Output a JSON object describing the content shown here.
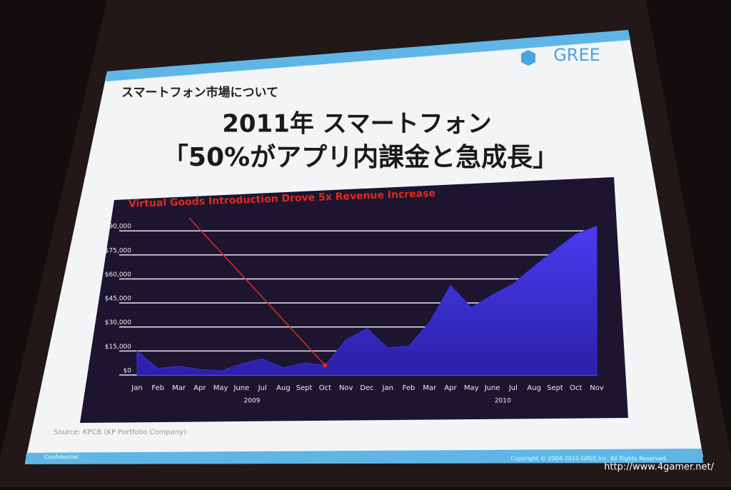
{
  "header": {
    "section": "スマートフォン市場について",
    "logo": "GREE"
  },
  "title": {
    "lines": [
      "2011年 スマートフォン",
      "「50%がアプリ内課金と急成長」"
    ]
  },
  "chart_data": {
    "type": "area",
    "annotation": "Virtual Goods Introduction Drove 5x Revenue Increase",
    "categories": [
      "Jan",
      "Feb",
      "Mar",
      "Apr",
      "May",
      "June",
      "Jul",
      "Aug",
      "Sept",
      "Oct",
      "Nov",
      "Dec",
      "Jan",
      "Feb",
      "Mar",
      "Apr",
      "May",
      "June",
      "Jul",
      "Aug",
      "Sept",
      "Oct",
      "Nov"
    ],
    "year_labels": [
      "2009",
      "2010"
    ],
    "values": [
      15000,
      4000,
      5500,
      3500,
      2500,
      7000,
      10000,
      4500,
      7500,
      6000,
      22000,
      29000,
      17000,
      18000,
      33000,
      56000,
      42000,
      50000,
      57000,
      68000,
      78000,
      88000,
      93000
    ],
    "color": "#3a2fd6",
    "ylim": [
      0,
      95000
    ],
    "yticks": [
      {
        "value": 0,
        "label": "$0"
      },
      {
        "value": 15000,
        "label": "$15,000"
      },
      {
        "value": 30000,
        "label": "$30,000"
      },
      {
        "value": 45000,
        "label": "$45,000"
      },
      {
        "value": 60000,
        "label": "$60,000"
      },
      {
        "value": 75000,
        "label": "$75,000"
      },
      {
        "value": 90000,
        "label": "$90,000"
      }
    ],
    "grid": true
  },
  "source": "Source: KPCB (KP Portfolio Company)",
  "footer": {
    "confidential": "Confidential",
    "copyright": "Copyright © 2004-2010 GREE,Inc. All Rights Reserved."
  },
  "watermark": "http://www.4gamer.net/"
}
